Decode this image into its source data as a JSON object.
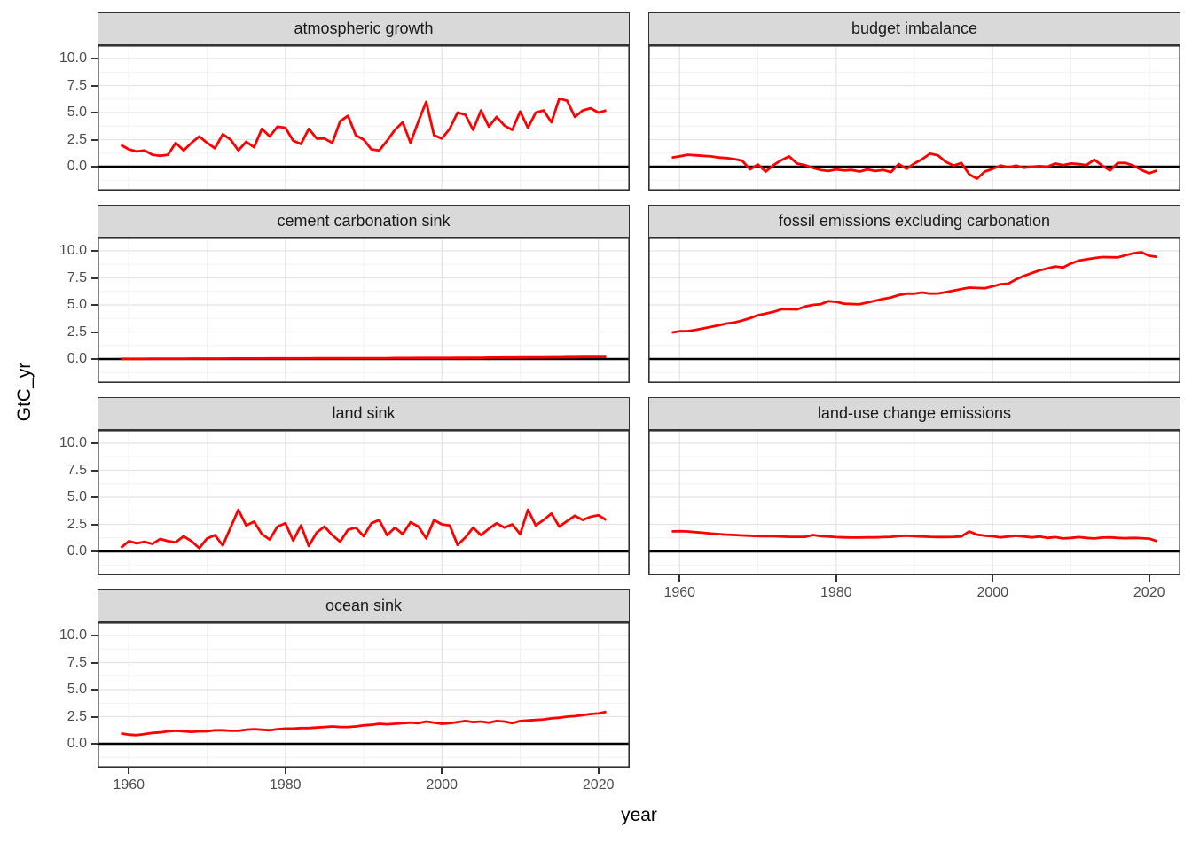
{
  "figure": {
    "x_label": "year",
    "y_label": "GtC_yr",
    "colors": {
      "line": "#FF0000",
      "zero_line": "#000000",
      "strip_fill": "#D9D9D9",
      "panel_border": "#333333",
      "grid_major": "#E4E4E4",
      "grid_minor": "#F2F2F2",
      "tick_label": "#4D4D4D",
      "axis_title": "#000000",
      "background": "#FFFFFF"
    }
  },
  "chart_data": {
    "type": "line",
    "facet_layout": "2-column facet grid, row-major",
    "legend": "none",
    "grid": true,
    "x_variable": "year",
    "y_variable": "GtC_yr",
    "x_tick_labels": [
      "1960",
      "1980",
      "2000",
      "2020"
    ],
    "x_tick_values": [
      1960,
      1980,
      2000,
      2020
    ],
    "y_tick_labels": [
      "0.0",
      "2.5",
      "5.0",
      "7.5",
      "10.0"
    ],
    "y_tick_values": [
      0,
      2.5,
      5,
      7.5,
      10
    ],
    "x_minor_values": [
      1970,
      1990,
      2010
    ],
    "y_minor_values": [
      -1.25,
      1.25,
      3.75,
      6.25,
      8.75
    ],
    "x_range": [
      1956,
      2024
    ],
    "y_range": [
      -2.21,
      11.23
    ],
    "hline_y": 0,
    "x": [
      1959,
      1960,
      1961,
      1962,
      1963,
      1964,
      1965,
      1966,
      1967,
      1968,
      1969,
      1970,
      1971,
      1972,
      1973,
      1974,
      1975,
      1976,
      1977,
      1978,
      1979,
      1980,
      1981,
      1982,
      1983,
      1984,
      1985,
      1986,
      1987,
      1988,
      1989,
      1990,
      1991,
      1992,
      1993,
      1994,
      1995,
      1996,
      1997,
      1998,
      1999,
      2000,
      2001,
      2002,
      2003,
      2004,
      2005,
      2006,
      2007,
      2008,
      2009,
      2010,
      2011,
      2012,
      2013,
      2014,
      2015,
      2016,
      2017,
      2018,
      2019,
      2020,
      2021
    ],
    "series": [
      {
        "name": "atmospheric growth",
        "values": [
          2.0,
          1.6,
          1.4,
          1.5,
          1.1,
          1.0,
          1.1,
          2.2,
          1.5,
          2.2,
          2.8,
          2.2,
          1.7,
          3.0,
          2.5,
          1.5,
          2.3,
          1.8,
          3.5,
          2.8,
          3.7,
          3.6,
          2.4,
          2.1,
          3.5,
          2.6,
          2.6,
          2.2,
          4.2,
          4.7,
          2.9,
          2.5,
          1.6,
          1.5,
          2.4,
          3.4,
          4.1,
          2.2,
          4.2,
          6.0,
          2.9,
          2.6,
          3.5,
          5.0,
          4.8,
          3.4,
          5.2,
          3.7,
          4.6,
          3.8,
          3.4,
          5.1,
          3.6,
          5.0,
          5.2,
          4.1,
          6.3,
          6.1,
          4.6,
          5.2,
          5.4,
          5.0,
          5.2
        ]
      },
      {
        "name": "budget imbalance",
        "values": [
          0.85,
          0.95,
          1.1,
          1.05,
          1.0,
          0.95,
          0.85,
          0.8,
          0.7,
          0.55,
          -0.25,
          0.2,
          -0.45,
          0.15,
          0.6,
          0.95,
          0.3,
          0.15,
          -0.1,
          -0.3,
          -0.4,
          -0.25,
          -0.35,
          -0.3,
          -0.45,
          -0.25,
          -0.4,
          -0.3,
          -0.5,
          0.25,
          -0.2,
          0.3,
          0.7,
          1.2,
          1.05,
          0.45,
          0.1,
          0.35,
          -0.7,
          -1.1,
          -0.45,
          -0.2,
          0.1,
          -0.05,
          0.1,
          -0.1,
          0.0,
          0.05,
          0.0,
          0.3,
          0.15,
          0.3,
          0.25,
          0.15,
          0.65,
          0.1,
          -0.35,
          0.35,
          0.35,
          0.1,
          -0.3,
          -0.6,
          -0.35
        ]
      },
      {
        "name": "cement carbonation sink",
        "values": [
          0.02,
          0.02,
          0.02,
          0.02,
          0.03,
          0.03,
          0.03,
          0.03,
          0.03,
          0.04,
          0.04,
          0.04,
          0.04,
          0.04,
          0.05,
          0.05,
          0.05,
          0.05,
          0.05,
          0.06,
          0.06,
          0.06,
          0.06,
          0.06,
          0.06,
          0.07,
          0.07,
          0.07,
          0.07,
          0.07,
          0.08,
          0.08,
          0.08,
          0.08,
          0.08,
          0.09,
          0.09,
          0.09,
          0.1,
          0.1,
          0.1,
          0.1,
          0.1,
          0.11,
          0.11,
          0.12,
          0.12,
          0.13,
          0.13,
          0.14,
          0.14,
          0.15,
          0.15,
          0.16,
          0.16,
          0.17,
          0.17,
          0.18,
          0.18,
          0.19,
          0.19,
          0.2,
          0.2
        ]
      },
      {
        "name": "fossil emissions excluding carbonation",
        "values": [
          2.45,
          2.57,
          2.58,
          2.69,
          2.83,
          2.98,
          3.12,
          3.28,
          3.38,
          3.56,
          3.78,
          4.05,
          4.2,
          4.36,
          4.6,
          4.61,
          4.58,
          4.85,
          5.0,
          5.06,
          5.35,
          5.29,
          5.12,
          5.08,
          5.06,
          5.23,
          5.39,
          5.56,
          5.69,
          5.91,
          6.05,
          6.04,
          6.15,
          6.05,
          6.06,
          6.18,
          6.32,
          6.47,
          6.6,
          6.57,
          6.54,
          6.72,
          6.91,
          6.97,
          7.37,
          7.68,
          7.94,
          8.2,
          8.38,
          8.56,
          8.47,
          8.83,
          9.1,
          9.22,
          9.34,
          9.43,
          9.41,
          9.4,
          9.6,
          9.78,
          9.88,
          9.55,
          9.45
        ]
      },
      {
        "name": "land sink",
        "values": [
          0.35,
          0.95,
          0.75,
          0.9,
          0.7,
          1.15,
          0.95,
          0.85,
          1.4,
          0.95,
          0.3,
          1.2,
          1.5,
          0.55,
          2.2,
          3.85,
          2.4,
          2.75,
          1.6,
          1.1,
          2.3,
          2.6,
          1.0,
          2.4,
          0.5,
          1.75,
          2.3,
          1.5,
          0.9,
          2.0,
          2.2,
          1.4,
          2.6,
          2.9,
          1.5,
          2.2,
          1.6,
          2.7,
          2.3,
          1.2,
          2.9,
          2.5,
          2.4,
          0.6,
          1.3,
          2.2,
          1.5,
          2.1,
          2.6,
          2.2,
          2.5,
          1.6,
          3.85,
          2.4,
          2.9,
          3.5,
          2.3,
          2.8,
          3.3,
          2.9,
          3.2,
          3.35,
          2.9
        ]
      },
      {
        "name": "land-use change emissions",
        "values": [
          1.85,
          1.87,
          1.85,
          1.78,
          1.72,
          1.65,
          1.6,
          1.55,
          1.52,
          1.48,
          1.45,
          1.42,
          1.4,
          1.4,
          1.38,
          1.35,
          1.35,
          1.35,
          1.52,
          1.42,
          1.38,
          1.32,
          1.3,
          1.28,
          1.28,
          1.3,
          1.3,
          1.32,
          1.35,
          1.42,
          1.45,
          1.4,
          1.38,
          1.35,
          1.33,
          1.33,
          1.35,
          1.38,
          1.85,
          1.55,
          1.45,
          1.4,
          1.3,
          1.38,
          1.45,
          1.38,
          1.3,
          1.38,
          1.25,
          1.32,
          1.2,
          1.25,
          1.32,
          1.25,
          1.2,
          1.28,
          1.3,
          1.25,
          1.22,
          1.25,
          1.22,
          1.18,
          0.95
        ]
      },
      {
        "name": "ocean sink",
        "values": [
          0.95,
          0.85,
          0.8,
          0.9,
          1.0,
          1.05,
          1.15,
          1.2,
          1.15,
          1.1,
          1.15,
          1.15,
          1.25,
          1.25,
          1.2,
          1.2,
          1.3,
          1.35,
          1.3,
          1.25,
          1.35,
          1.4,
          1.4,
          1.45,
          1.45,
          1.5,
          1.55,
          1.6,
          1.55,
          1.55,
          1.6,
          1.7,
          1.75,
          1.85,
          1.8,
          1.85,
          1.9,
          1.95,
          1.9,
          2.05,
          1.95,
          1.85,
          1.9,
          2.0,
          2.1,
          2.0,
          2.05,
          1.95,
          2.1,
          2.05,
          1.9,
          2.1,
          2.15,
          2.2,
          2.25,
          2.35,
          2.4,
          2.5,
          2.55,
          2.65,
          2.75,
          2.8,
          2.95
        ]
      }
    ]
  }
}
